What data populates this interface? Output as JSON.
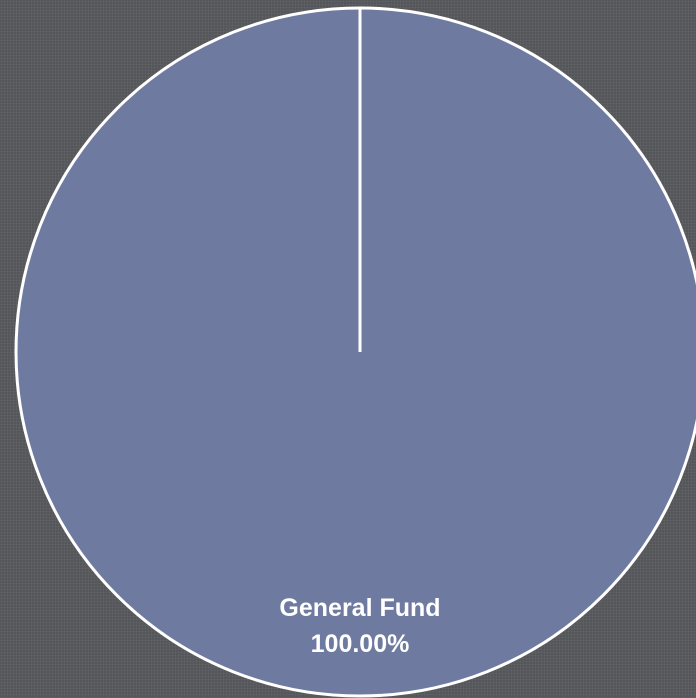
{
  "chart_data": {
    "type": "pie",
    "categories": [
      "General Fund"
    ],
    "values": [
      100
    ],
    "value_labels": [
      "100.00%"
    ],
    "colors": [
      "#6f7aa1"
    ]
  }
}
